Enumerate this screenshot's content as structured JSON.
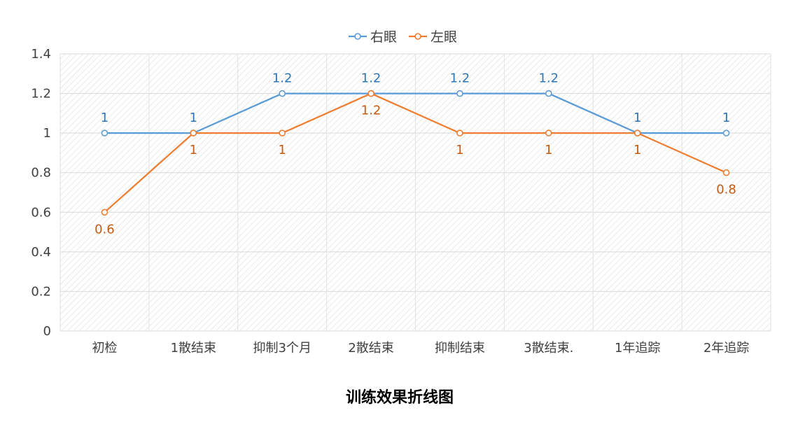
{
  "chart_data": {
    "type": "line",
    "title": "训练效果折线图",
    "xlabel": "",
    "ylabel": "",
    "categories": [
      "初检",
      "1散结束",
      "抑制3个月",
      "2散结束",
      "抑制结束",
      "3散结束.",
      "1年追踪",
      "2年追踪"
    ],
    "ylim": [
      0,
      1.4
    ],
    "yticks": [
      "0",
      "0.2",
      "0.4",
      "0.6",
      "0.8",
      "1",
      "1.2",
      "1.4"
    ],
    "grid": true,
    "legend_position": "top",
    "series": [
      {
        "name": "右眼",
        "color": "#5B9BD5",
        "label_color": "#2E75B6",
        "label_position": "above",
        "values": [
          1,
          1,
          1.2,
          1.2,
          1.2,
          1.2,
          1,
          1
        ],
        "labels": [
          "1",
          "1",
          "1.2",
          "1.2",
          "1.2",
          "1.2",
          "1",
          "1"
        ]
      },
      {
        "name": "左眼",
        "color": "#ED7D31",
        "label_color": "#C55A11",
        "label_position": "below",
        "values": [
          0.6,
          1,
          1,
          1.2,
          1,
          1,
          1,
          0.8
        ],
        "labels": [
          "0.6",
          "1",
          "1",
          "1.2",
          "1",
          "1",
          "1",
          "0.8"
        ]
      }
    ]
  }
}
